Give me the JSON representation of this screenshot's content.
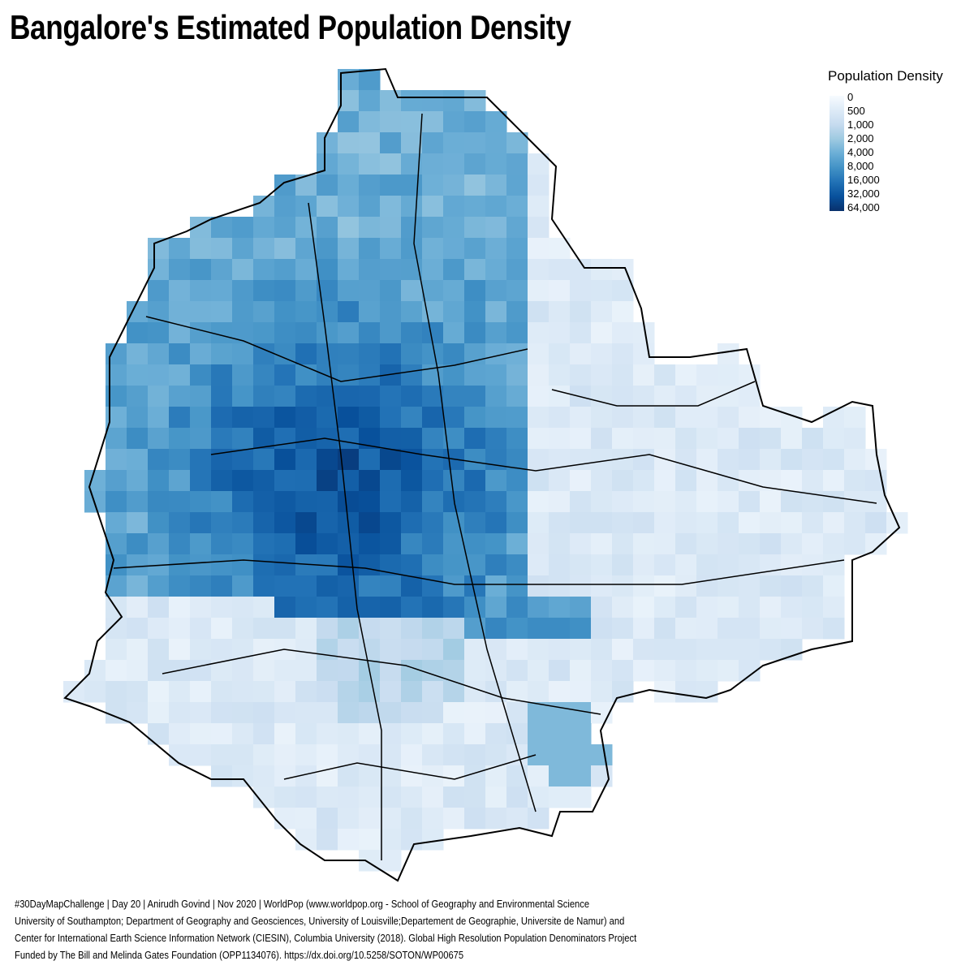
{
  "title": "Bangalore's Estimated Population Density",
  "legend": {
    "title": "Population Density",
    "labels": [
      "0",
      "500",
      "1,000",
      "2,000",
      "4,000",
      "8,000",
      "16,000",
      "32,000",
      "64,000"
    ],
    "colors": [
      "#f7fbff",
      "#deebf7",
      "#c6dbef",
      "#9ecae1",
      "#6baed6",
      "#4292c6",
      "#2171b5",
      "#08519c",
      "#08306b"
    ]
  },
  "caption": [
    "#30DayMapChallenge | Day 20 | Anirudh Govind | Nov 2020 | WorldPop (www.worldpop.org - School of Geography and Environmental Science",
    "University of Southampton; Department of Geography and Geosciences, University of Louisville;Departement de Geographie, Universite de Namur) and",
    "Center for International Earth Science Information Network (CIESIN), Columbia University (2018). Global High Resolution Population Denominators Project",
    "Funded by The Bill and Melinda Gates Foundation (OPP1134076). https://dx.doi.org/10.5258/SOTON/WP00675"
  ],
  "boundary_color": "#000000"
}
